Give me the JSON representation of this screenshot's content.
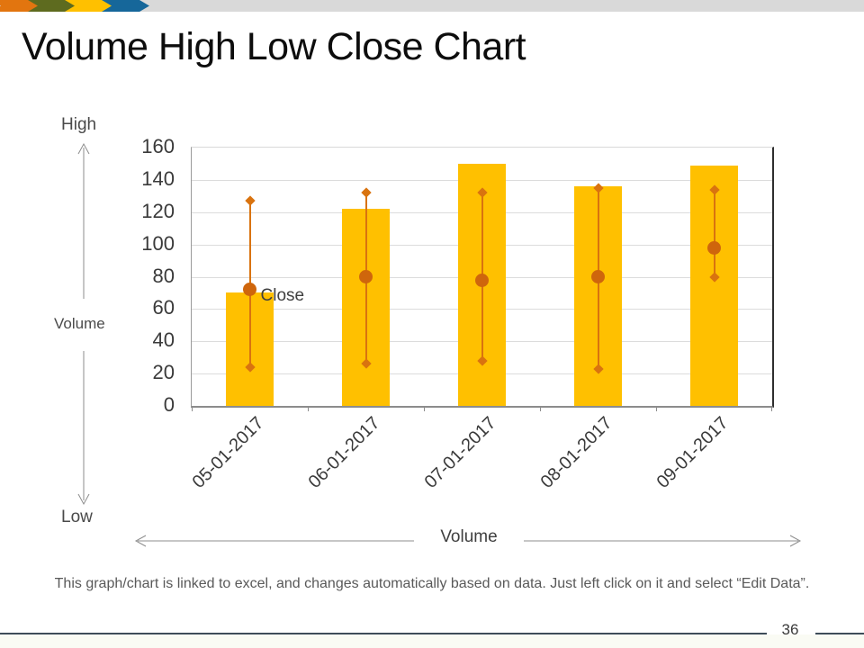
{
  "slide": {
    "title": "Volume High Low Close Chart",
    "page_number": "36",
    "footer_note": "This graph/chart is linked to excel, and changes automatically  based on data. Just left click on it and select “Edit Data”.",
    "band_color": "#d9d9d9",
    "decor_colors": [
      "#e2750f",
      "#5e6b1f",
      "#ffc000",
      "#16679a"
    ]
  },
  "annotations": {
    "high_label": "High",
    "low_label": "Low",
    "volume_axis_label": "Volume",
    "volume_bottom_label": "Volume",
    "close_label": "Close"
  },
  "chart_data": {
    "type": "bar",
    "subtype": "volume-high-low-close",
    "categories": [
      "05-01-2017",
      "06-01-2017",
      "07-01-2017",
      "08-01-2017",
      "09-01-2017"
    ],
    "series": [
      {
        "name": "Volume",
        "type": "bar",
        "values": [
          70,
          122,
          150,
          136,
          149
        ],
        "color": "#ffc000"
      },
      {
        "name": "High",
        "type": "diamond-marker",
        "values": [
          127,
          132,
          132,
          135,
          134
        ],
        "color": "#d9730f"
      },
      {
        "name": "Low",
        "type": "diamond-marker",
        "values": [
          24,
          26,
          28,
          23,
          80
        ],
        "color": "#d9730f"
      },
      {
        "name": "Close",
        "type": "circle-marker",
        "values": [
          72,
          80,
          78,
          80,
          98
        ],
        "color": "#cf660c"
      }
    ],
    "hl_line_color": "#d9730f",
    "yticks": [
      0,
      20,
      40,
      60,
      80,
      100,
      120,
      140,
      160
    ],
    "ylim": [
      0,
      160
    ],
    "grid": "horizontal",
    "legend": "none",
    "xlabel": "Volume",
    "close_annotation_series_index": 0
  }
}
